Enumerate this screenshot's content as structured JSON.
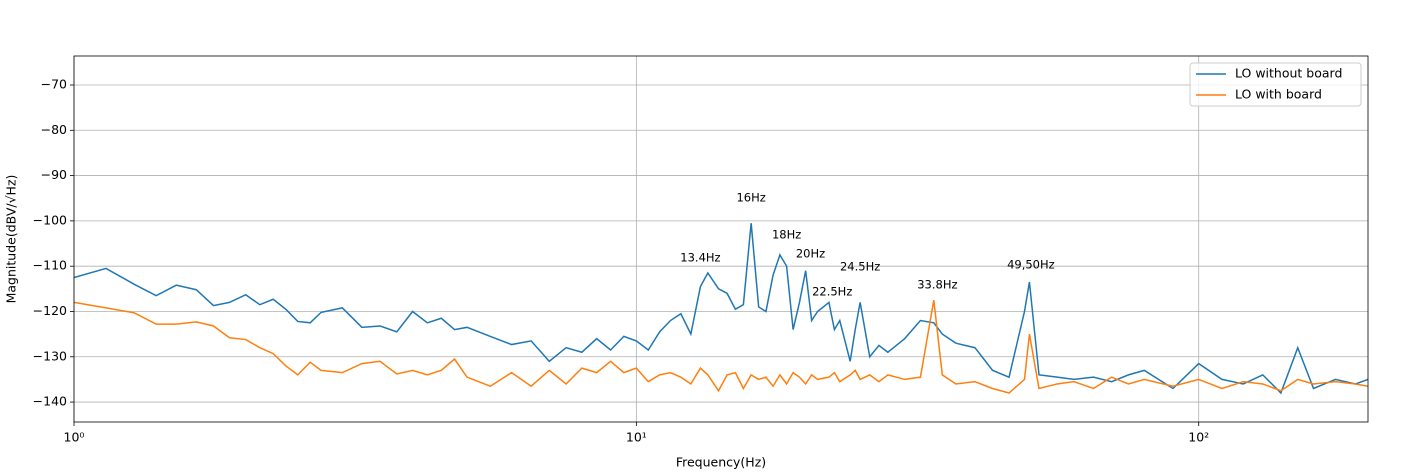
{
  "chart_data": {
    "type": "line",
    "xlabel": "Frequency(Hz)",
    "ylabel": "Magnitude(dBV/√Hz)",
    "xscale": "log",
    "grid": true,
    "legend": "upper right",
    "xlim": [
      1,
      200
    ],
    "ylim": [
      -144.4,
      -63.6
    ],
    "xticks": [
      {
        "value": 1,
        "label": "10⁰"
      },
      {
        "value": 10,
        "label": "10¹"
      },
      {
        "value": 100,
        "label": "10²"
      }
    ],
    "yticks": [
      {
        "value": -70,
        "label": "−70"
      },
      {
        "value": -80,
        "label": "−80"
      },
      {
        "value": -90,
        "label": "−90"
      },
      {
        "value": -100,
        "label": "−100"
      },
      {
        "value": -110,
        "label": "−110"
      },
      {
        "value": -120,
        "label": "−120"
      },
      {
        "value": -130,
        "label": "−130"
      },
      {
        "value": -140,
        "label": "−140"
      }
    ],
    "annotations": [
      {
        "text": "16Hz",
        "x": 16,
        "y": -95
      },
      {
        "text": "13.4Hz",
        "x": 13,
        "y": -108.2
      },
      {
        "text": "18Hz",
        "x": 18.5,
        "y": -103.1
      },
      {
        "text": "20Hz",
        "x": 20.4,
        "y": -107.3
      },
      {
        "text": "24.5Hz",
        "x": 25,
        "y": -110.2
      },
      {
        "text": "22.5Hz",
        "x": 22.3,
        "y": -115.7
      },
      {
        "text": "33.8Hz",
        "x": 34.3,
        "y": -114.2
      },
      {
        "text": "49,50Hz",
        "x": 50.3,
        "y": -109.7
      }
    ],
    "x": [
      1,
      1.14,
      1.28,
      1.4,
      1.52,
      1.65,
      1.77,
      1.89,
      2.02,
      2.14,
      2.26,
      2.38,
      2.5,
      2.63,
      2.75,
      3.0,
      3.25,
      3.5,
      3.75,
      4.0,
      4.25,
      4.5,
      4.75,
      5.0,
      5.5,
      6.0,
      6.5,
      7.0,
      7.5,
      8.0,
      8.5,
      9.0,
      9.5,
      10,
      10.5,
      11,
      11.5,
      12,
      12.5,
      13,
      13.4,
      14,
      14.5,
      15,
      15.5,
      16,
      16.5,
      17,
      17.5,
      18,
      18.5,
      19,
      19.5,
      20,
      20.5,
      21,
      22,
      22.5,
      23,
      24,
      24.5,
      25,
      26,
      27,
      28,
      30,
      32,
      33.8,
      35,
      37,
      40,
      43,
      46,
      49,
      50,
      52,
      56,
      60,
      65,
      70,
      75,
      80,
      90,
      100,
      110,
      120,
      130,
      140,
      150,
      160,
      175,
      190,
      200
    ],
    "series": [
      {
        "name": "LO without board",
        "color": "#1f77b4",
        "values": [
          -112.5,
          -110.5,
          -114,
          -116.5,
          -114.2,
          -115.2,
          -118.7,
          -118,
          -116.3,
          -118.5,
          -117.3,
          -119.5,
          -122.2,
          -122.5,
          -120.2,
          -119.2,
          -123.5,
          -123.2,
          -124.5,
          -120,
          -122.5,
          -121.5,
          -124,
          -123.5,
          -125.5,
          -127.3,
          -126.5,
          -131,
          -128,
          -129,
          -126,
          -128.5,
          -125.5,
          -126.5,
          -128.5,
          -124.5,
          -122,
          -120.5,
          -125,
          -114.5,
          -111.5,
          -115,
          -116,
          -119.5,
          -118.5,
          -100.5,
          -119,
          -120,
          -112,
          -107.5,
          -110,
          -124,
          -118,
          -111,
          -122,
          -120,
          -118,
          -124,
          -122,
          -131,
          -124,
          -118,
          -130,
          -127.5,
          -129,
          -126,
          -122,
          -122.5,
          -125,
          -127,
          -128,
          -133,
          -134.5,
          -120,
          -113.5,
          -134,
          -134.5,
          -135,
          -134.5,
          -135.5,
          -134,
          -133,
          -137,
          -131.5,
          -135,
          -136,
          -134,
          -138,
          -128,
          -137,
          -135,
          -136,
          -135
        ]
      },
      {
        "name": "LO with board",
        "color": "#ff7f0e",
        "values": [
          -118,
          -119.2,
          -120.3,
          -122.8,
          -122.8,
          -122.3,
          -123.2,
          -125.8,
          -126.2,
          -128,
          -129.3,
          -132,
          -134,
          -131.2,
          -133,
          -133.5,
          -131.5,
          -131,
          -133.8,
          -133,
          -134,
          -133,
          -130.5,
          -134.5,
          -136.5,
          -133.5,
          -136.5,
          -133,
          -136,
          -132.5,
          -133.5,
          -131,
          -133.5,
          -132.5,
          -135.5,
          -134,
          -133.5,
          -134.5,
          -136,
          -132.5,
          -134,
          -137.5,
          -134,
          -133.5,
          -137,
          -134,
          -135,
          -134.5,
          -136.5,
          -134,
          -136,
          -133.5,
          -134.5,
          -136,
          -134,
          -135,
          -134.5,
          -133.5,
          -135.5,
          -134,
          -133,
          -135,
          -134,
          -135.5,
          -134,
          -135,
          -134.5,
          -117.5,
          -134,
          -136,
          -135.5,
          -137,
          -138,
          -135,
          -125,
          -137,
          -136,
          -135.5,
          -137,
          -134.5,
          -136,
          -135,
          -136.5,
          -135,
          -137,
          -135.5,
          -136,
          -137.5,
          -135,
          -136,
          -135.5,
          -136,
          -136.5
        ]
      }
    ]
  }
}
